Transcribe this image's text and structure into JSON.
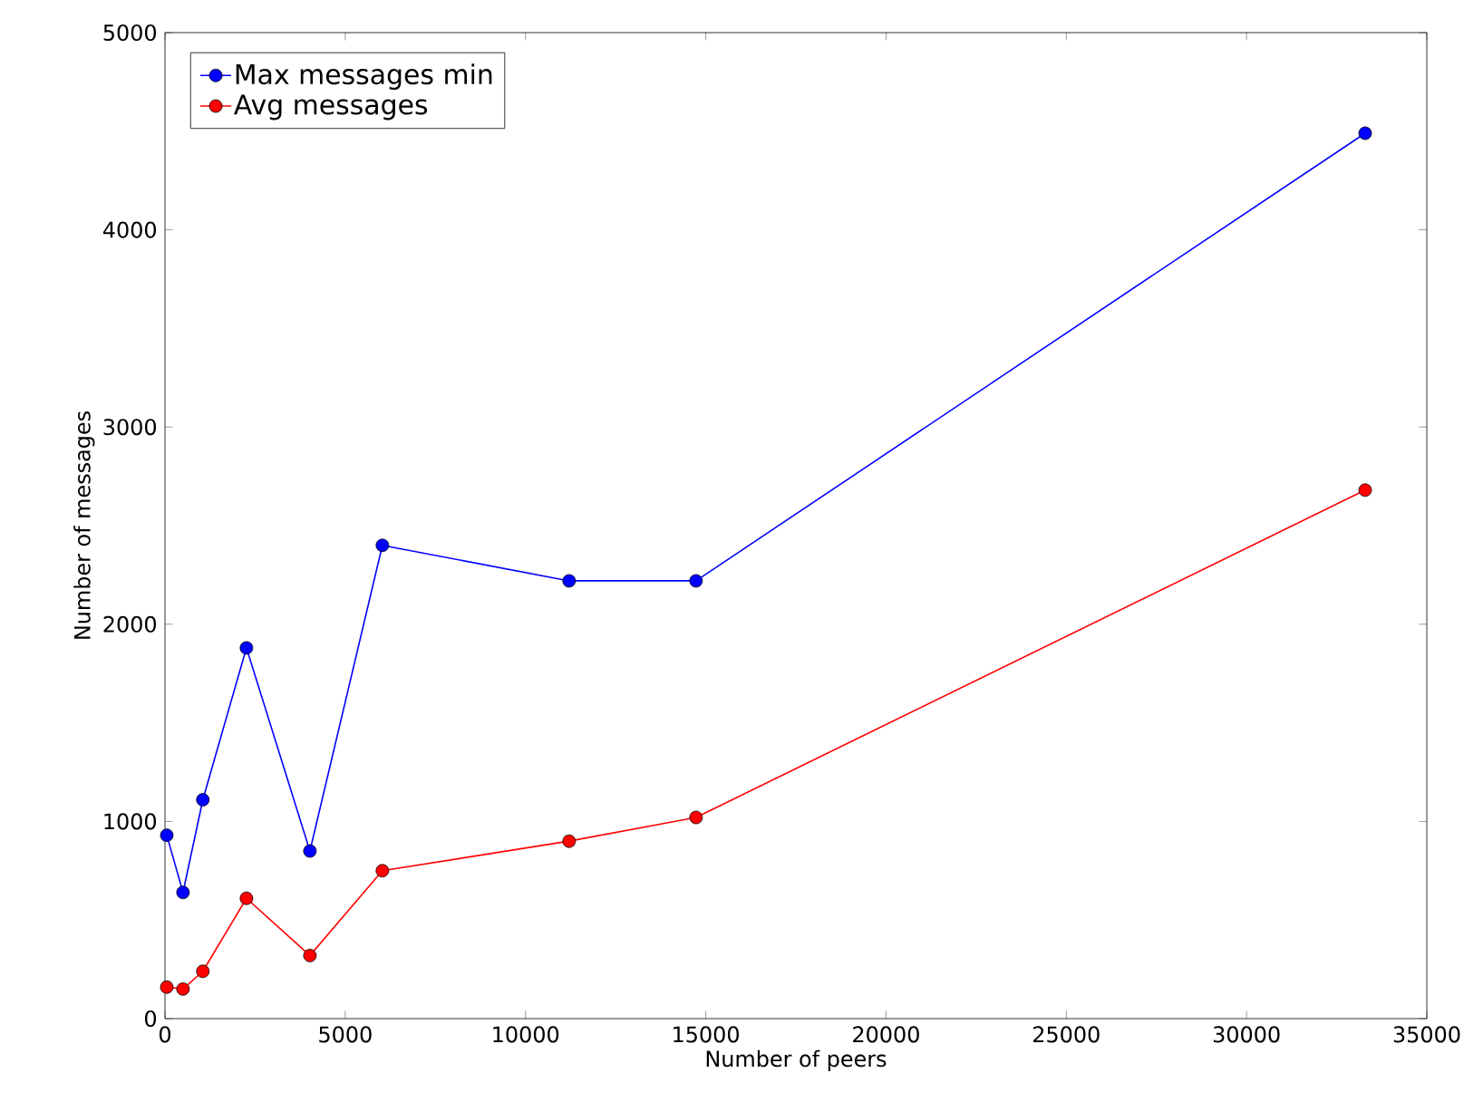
{
  "chart_data": {
    "type": "line",
    "xlabel": "Number of peers",
    "ylabel": "Number of messages",
    "xlim": [
      0,
      35000
    ],
    "ylim": [
      0,
      5000
    ],
    "xticks": [
      0,
      5000,
      10000,
      15000,
      20000,
      25000,
      30000,
      35000
    ],
    "yticks": [
      0,
      1000,
      2000,
      3000,
      4000,
      5000
    ],
    "x": [
      50,
      500,
      1050,
      2260,
      4020,
      6030,
      11210,
      14730,
      33290
    ],
    "series": [
      {
        "name": "Max messages min",
        "color": "#0000ff",
        "values": [
          930,
          640,
          1110,
          1880,
          850,
          2400,
          2220,
          2220,
          4490
        ]
      },
      {
        "name": "Avg messages",
        "color": "#ff0000",
        "values": [
          160,
          150,
          240,
          610,
          320,
          750,
          900,
          1020,
          2680
        ]
      }
    ],
    "marker": "circle",
    "legend": "top left",
    "grid": false,
    "line_style": "solid"
  }
}
